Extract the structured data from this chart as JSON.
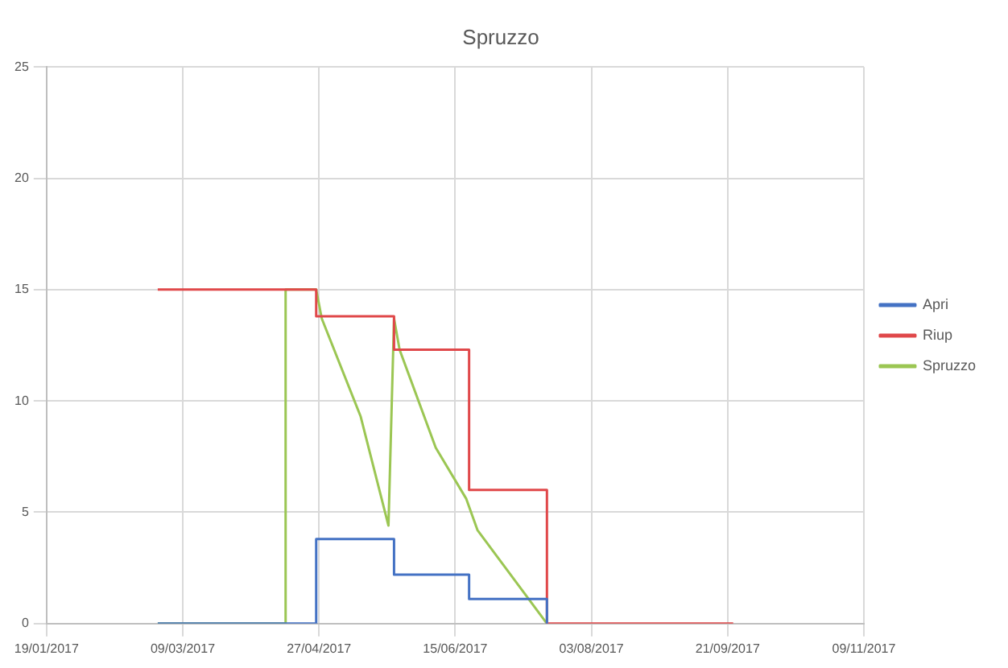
{
  "chart_data": {
    "type": "line",
    "title": "Spruzzo",
    "xlim": [
      "2017-01-19",
      "2017-11-09"
    ],
    "xticks": [
      {
        "value": "2017-01-19",
        "label": "19/01/2017"
      },
      {
        "value": "2017-03-09",
        "label": "09/03/2017"
      },
      {
        "value": "2017-04-27",
        "label": "27/04/2017"
      },
      {
        "value": "2017-06-15",
        "label": "15/06/2017"
      },
      {
        "value": "2017-08-03",
        "label": "03/08/2017"
      },
      {
        "value": "2017-09-21",
        "label": "21/09/2017"
      },
      {
        "value": "2017-11-09",
        "label": "09/11/2017"
      }
    ],
    "ylim": [
      0,
      25
    ],
    "yticks": [
      0,
      5,
      10,
      15,
      20,
      25
    ],
    "grid": true,
    "legend": "right",
    "marker": "none",
    "line_style": "solid",
    "series": [
      {
        "name": "Apri",
        "color": "#4472c4",
        "x": [
          "2017-02-28",
          "2017-04-26",
          "2017-04-26",
          "2017-05-24",
          "2017-05-24",
          "2017-06-20",
          "2017-06-20",
          "2017-07-18",
          "2017-07-18"
        ],
        "values": [
          0,
          0,
          3.8,
          3.8,
          2.2,
          2.2,
          1.1,
          1.1,
          0
        ]
      },
      {
        "name": "Riup",
        "color": "#e0484a",
        "x": [
          "2017-02-28",
          "2017-04-26",
          "2017-04-26",
          "2017-05-24",
          "2017-05-24",
          "2017-06-20",
          "2017-06-20",
          "2017-07-18",
          "2017-07-18",
          "2017-09-23"
        ],
        "values": [
          15,
          15,
          13.8,
          13.8,
          12.3,
          12.3,
          6,
          6,
          0,
          0
        ]
      },
      {
        "name": "Spruzzo",
        "color": "#9bc653",
        "x": [
          "2017-02-28",
          "2017-04-15",
          "2017-04-15",
          "2017-04-26",
          "2017-04-28",
          "2017-05-12",
          "2017-05-22",
          "2017-05-24",
          "2017-05-26",
          "2017-06-08",
          "2017-06-19",
          "2017-06-23",
          "2017-07-18"
        ],
        "values": [
          0,
          0,
          15,
          15,
          13.7,
          9.3,
          4.4,
          13.7,
          12.3,
          7.9,
          5.6,
          4.2,
          0
        ]
      }
    ]
  }
}
